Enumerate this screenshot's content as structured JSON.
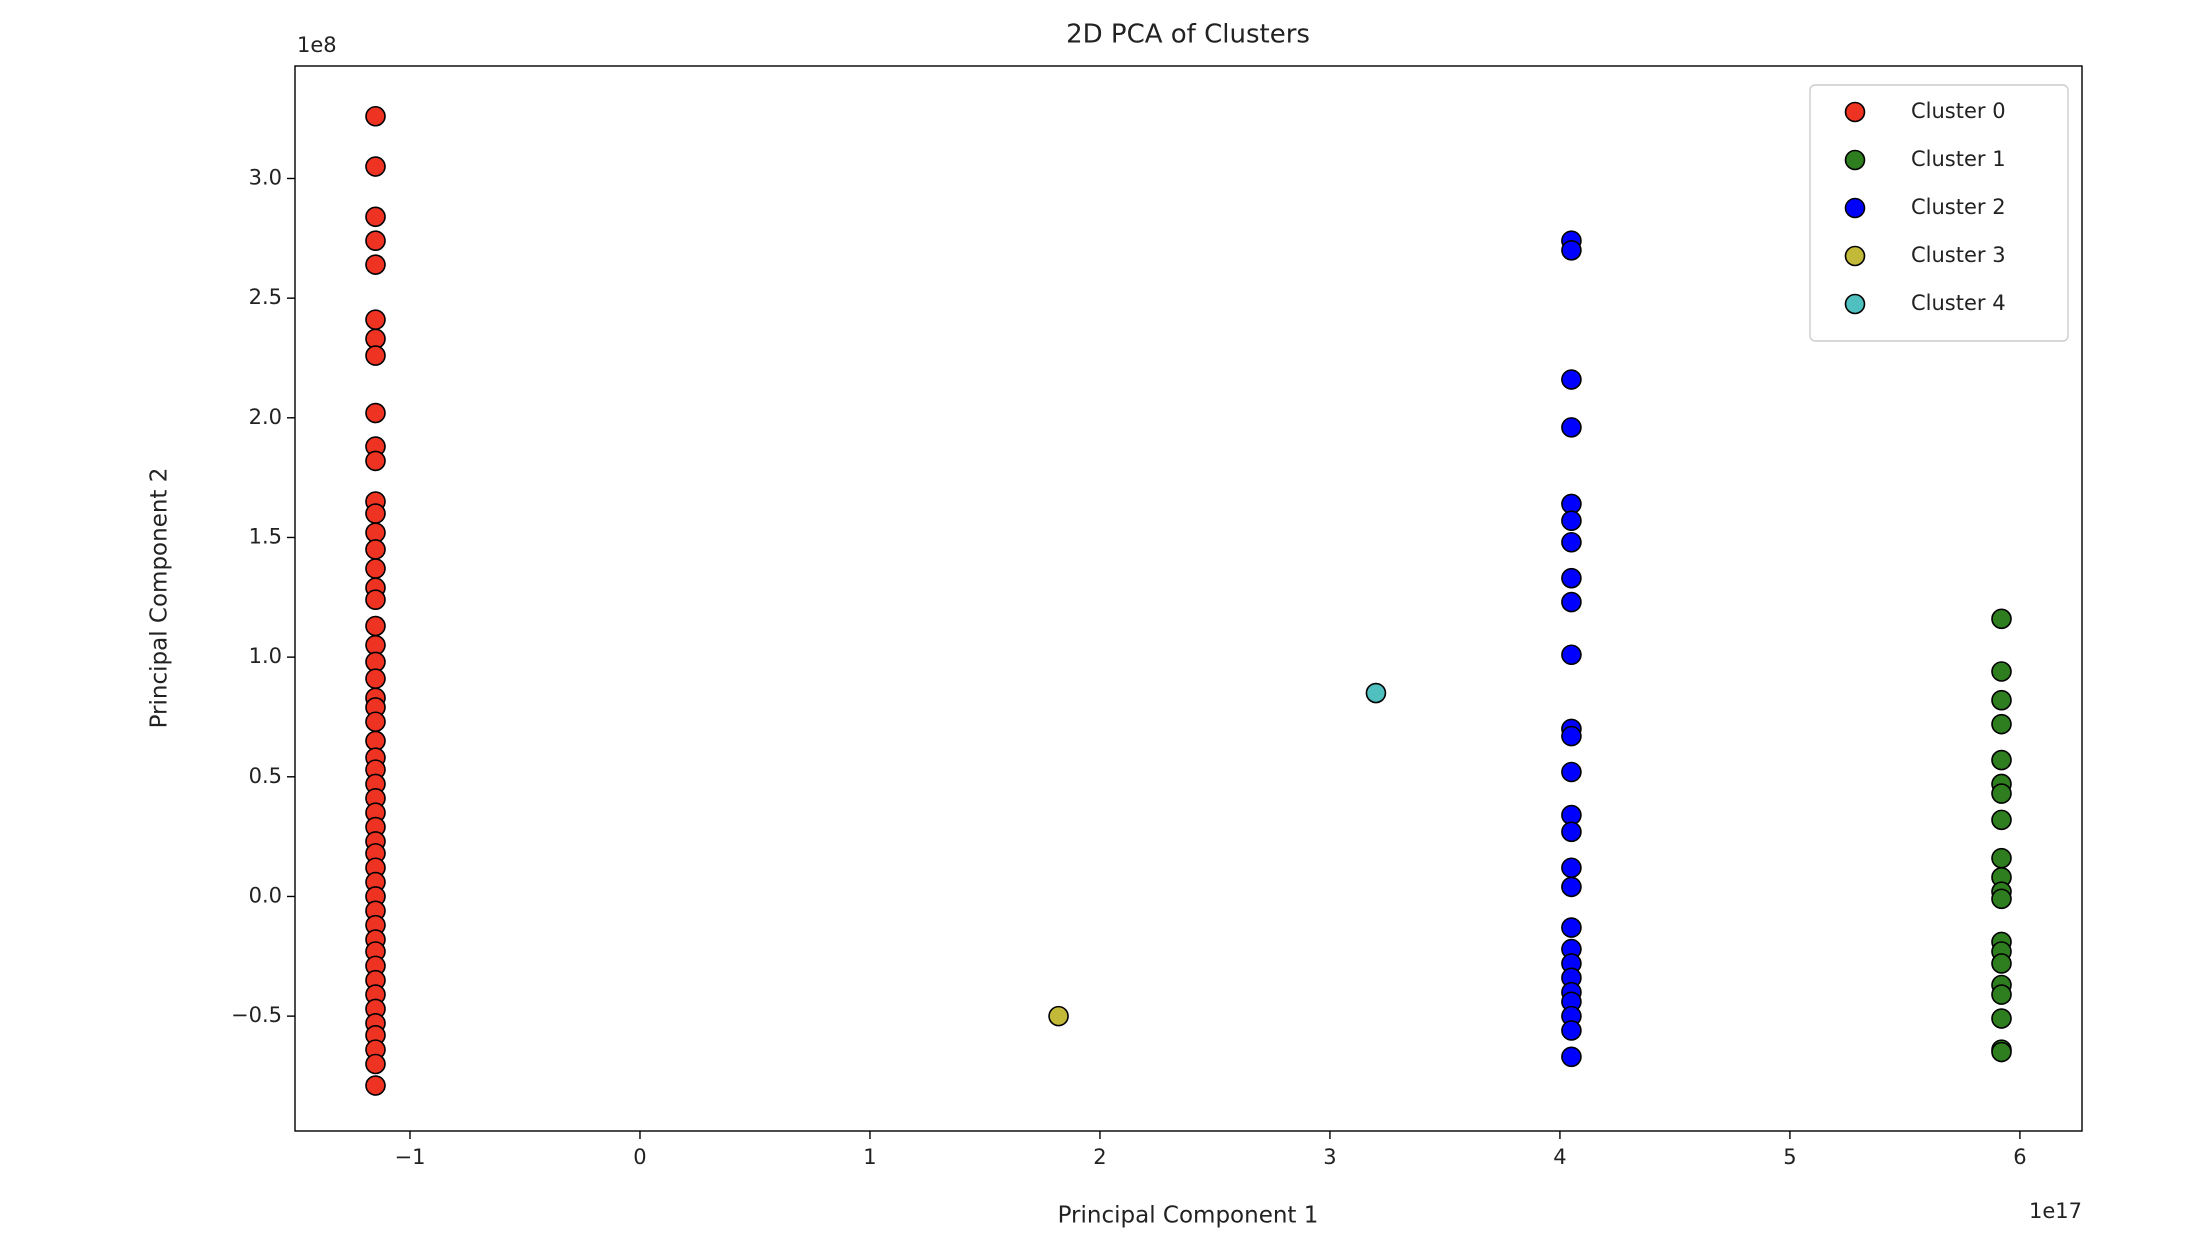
{
  "chart_data": {
    "type": "scatter",
    "title": "2D PCA of Clusters",
    "x_label": "Principal Component 1",
    "y_label": "Principal Component 2",
    "x_offset_label": "1e17",
    "y_offset_label": "1e8",
    "xlim": [
      -1.5,
      6.27
    ],
    "ylim": [
      -0.98,
      3.47
    ],
    "xticks": [
      {
        "value": -1,
        "label": "−1"
      },
      0,
      1,
      2,
      3,
      4,
      5,
      6
    ],
    "yticks": [
      {
        "value": -0.5,
        "label": "−0.5"
      },
      {
        "value": 0,
        "label": "0.0"
      },
      0.5,
      {
        "value": 1,
        "label": "1.0"
      },
      1.5,
      {
        "value": 2,
        "label": "2.0"
      },
      2.5,
      {
        "value": 3,
        "label": "3.0"
      }
    ],
    "legend": "upper right",
    "edge_color": "#000000",
    "series": [
      {
        "name": "Cluster 0",
        "color": "#ee3322",
        "x": [
          -1.15,
          -1.15,
          -1.15,
          -1.15,
          -1.15,
          -1.15,
          -1.15,
          -1.15,
          -1.15,
          -1.15,
          -1.15,
          -1.15,
          -1.15,
          -1.15,
          -1.15,
          -1.15,
          -1.15,
          -1.15,
          -1.15,
          -1.15,
          -1.15,
          -1.15,
          -1.15,
          -1.15,
          -1.15,
          -1.15,
          -1.15,
          -1.15,
          -1.15,
          -1.15,
          -1.15,
          -1.15,
          -1.15,
          -1.15,
          -1.15,
          -1.15,
          -1.15,
          -1.15,
          -1.15,
          -1.15,
          -1.15,
          -1.15,
          -1.15,
          -1.15,
          -1.15,
          -1.15,
          -1.15,
          -1.15,
          -1.15,
          -1.15
        ],
        "y": [
          3.26,
          3.05,
          2.84,
          2.74,
          2.64,
          2.41,
          2.33,
          2.26,
          2.02,
          1.88,
          1.82,
          1.65,
          1.6,
          1.52,
          1.45,
          1.37,
          1.29,
          1.24,
          1.13,
          1.05,
          0.98,
          0.91,
          0.83,
          0.79,
          0.73,
          0.65,
          0.58,
          0.53,
          0.47,
          0.41,
          0.35,
          0.29,
          0.23,
          0.18,
          0.12,
          0.06,
          0,
          -0.06,
          -0.12,
          -0.18,
          -0.23,
          -0.29,
          -0.35,
          -0.41,
          -0.47,
          -0.53,
          -0.58,
          -0.64,
          -0.7,
          -0.79
        ]
      },
      {
        "name": "Cluster 1",
        "color": "#2e7d1e",
        "x": [
          5.92,
          5.92,
          5.92,
          5.92,
          5.92,
          5.92,
          5.92,
          5.92,
          5.92,
          5.92,
          5.92,
          5.92,
          5.92,
          5.92,
          5.92,
          5.92,
          5.92,
          5.92,
          5.92,
          5.92
        ],
        "y": [
          1.16,
          0.94,
          0.82,
          0.72,
          0.57,
          0.47,
          0.43,
          0.32,
          0.16,
          0.08,
          0.02,
          -0.01,
          -0.19,
          -0.23,
          -0.28,
          -0.37,
          -0.41,
          -0.51,
          -0.64,
          -0.65
        ]
      },
      {
        "name": "Cluster 2",
        "color": "#0000ff",
        "x": [
          4.05,
          4.05,
          4.05,
          4.05,
          4.05,
          4.05,
          4.05,
          4.05,
          4.05,
          4.05,
          4.05,
          4.05,
          4.05,
          4.05,
          4.05,
          4.05,
          4.05,
          4.05,
          4.05,
          4.05,
          4.05,
          4.05,
          4.05,
          4.05,
          4.05,
          4.05
        ],
        "y": [
          2.74,
          2.7,
          2.16,
          1.96,
          1.64,
          1.57,
          1.48,
          1.33,
          1.23,
          1.01,
          0.7,
          0.67,
          0.52,
          0.34,
          0.27,
          0.12,
          0.04,
          -0.13,
          -0.22,
          -0.28,
          -0.34,
          -0.4,
          -0.44,
          -0.5,
          -0.56,
          -0.67
        ]
      },
      {
        "name": "Cluster 3",
        "color": "#c2b938",
        "x": [
          1.82
        ],
        "y": [
          -0.5
        ]
      },
      {
        "name": "Cluster 4",
        "color": "#4fbfbf",
        "x": [
          3.2
        ],
        "y": [
          0.85
        ]
      }
    ]
  }
}
